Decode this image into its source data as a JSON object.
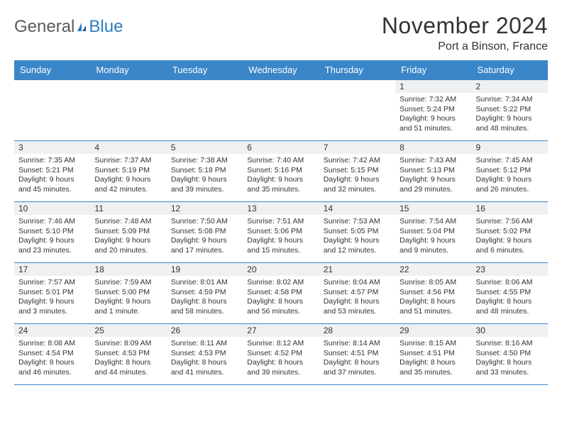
{
  "logo": {
    "general": "General",
    "blue": "Blue"
  },
  "title": "November 2024",
  "location": "Port a Binson, France",
  "colors": {
    "header_bg": "#3a86c8",
    "header_text": "#ffffff",
    "daynum_bg": "#eef0f2",
    "border": "#3a86c8",
    "logo_general": "#5a5a5a",
    "logo_blue": "#2e7cc0"
  },
  "weekdays": [
    "Sunday",
    "Monday",
    "Tuesday",
    "Wednesday",
    "Thursday",
    "Friday",
    "Saturday"
  ],
  "weeks": [
    [
      {
        "empty": true
      },
      {
        "empty": true
      },
      {
        "empty": true
      },
      {
        "empty": true
      },
      {
        "empty": true
      },
      {
        "num": "1",
        "sunrise": "Sunrise: 7:32 AM",
        "sunset": "Sunset: 5:24 PM",
        "daylight": "Daylight: 9 hours and 51 minutes."
      },
      {
        "num": "2",
        "sunrise": "Sunrise: 7:34 AM",
        "sunset": "Sunset: 5:22 PM",
        "daylight": "Daylight: 9 hours and 48 minutes."
      }
    ],
    [
      {
        "num": "3",
        "sunrise": "Sunrise: 7:35 AM",
        "sunset": "Sunset: 5:21 PM",
        "daylight": "Daylight: 9 hours and 45 minutes."
      },
      {
        "num": "4",
        "sunrise": "Sunrise: 7:37 AM",
        "sunset": "Sunset: 5:19 PM",
        "daylight": "Daylight: 9 hours and 42 minutes."
      },
      {
        "num": "5",
        "sunrise": "Sunrise: 7:38 AM",
        "sunset": "Sunset: 5:18 PM",
        "daylight": "Daylight: 9 hours and 39 minutes."
      },
      {
        "num": "6",
        "sunrise": "Sunrise: 7:40 AM",
        "sunset": "Sunset: 5:16 PM",
        "daylight": "Daylight: 9 hours and 35 minutes."
      },
      {
        "num": "7",
        "sunrise": "Sunrise: 7:42 AM",
        "sunset": "Sunset: 5:15 PM",
        "daylight": "Daylight: 9 hours and 32 minutes."
      },
      {
        "num": "8",
        "sunrise": "Sunrise: 7:43 AM",
        "sunset": "Sunset: 5:13 PM",
        "daylight": "Daylight: 9 hours and 29 minutes."
      },
      {
        "num": "9",
        "sunrise": "Sunrise: 7:45 AM",
        "sunset": "Sunset: 5:12 PM",
        "daylight": "Daylight: 9 hours and 26 minutes."
      }
    ],
    [
      {
        "num": "10",
        "sunrise": "Sunrise: 7:46 AM",
        "sunset": "Sunset: 5:10 PM",
        "daylight": "Daylight: 9 hours and 23 minutes."
      },
      {
        "num": "11",
        "sunrise": "Sunrise: 7:48 AM",
        "sunset": "Sunset: 5:09 PM",
        "daylight": "Daylight: 9 hours and 20 minutes."
      },
      {
        "num": "12",
        "sunrise": "Sunrise: 7:50 AM",
        "sunset": "Sunset: 5:08 PM",
        "daylight": "Daylight: 9 hours and 17 minutes."
      },
      {
        "num": "13",
        "sunrise": "Sunrise: 7:51 AM",
        "sunset": "Sunset: 5:06 PM",
        "daylight": "Daylight: 9 hours and 15 minutes."
      },
      {
        "num": "14",
        "sunrise": "Sunrise: 7:53 AM",
        "sunset": "Sunset: 5:05 PM",
        "daylight": "Daylight: 9 hours and 12 minutes."
      },
      {
        "num": "15",
        "sunrise": "Sunrise: 7:54 AM",
        "sunset": "Sunset: 5:04 PM",
        "daylight": "Daylight: 9 hours and 9 minutes."
      },
      {
        "num": "16",
        "sunrise": "Sunrise: 7:56 AM",
        "sunset": "Sunset: 5:02 PM",
        "daylight": "Daylight: 9 hours and 6 minutes."
      }
    ],
    [
      {
        "num": "17",
        "sunrise": "Sunrise: 7:57 AM",
        "sunset": "Sunset: 5:01 PM",
        "daylight": "Daylight: 9 hours and 3 minutes."
      },
      {
        "num": "18",
        "sunrise": "Sunrise: 7:59 AM",
        "sunset": "Sunset: 5:00 PM",
        "daylight": "Daylight: 9 hours and 1 minute."
      },
      {
        "num": "19",
        "sunrise": "Sunrise: 8:01 AM",
        "sunset": "Sunset: 4:59 PM",
        "daylight": "Daylight: 8 hours and 58 minutes."
      },
      {
        "num": "20",
        "sunrise": "Sunrise: 8:02 AM",
        "sunset": "Sunset: 4:58 PM",
        "daylight": "Daylight: 8 hours and 56 minutes."
      },
      {
        "num": "21",
        "sunrise": "Sunrise: 8:04 AM",
        "sunset": "Sunset: 4:57 PM",
        "daylight": "Daylight: 8 hours and 53 minutes."
      },
      {
        "num": "22",
        "sunrise": "Sunrise: 8:05 AM",
        "sunset": "Sunset: 4:56 PM",
        "daylight": "Daylight: 8 hours and 51 minutes."
      },
      {
        "num": "23",
        "sunrise": "Sunrise: 8:06 AM",
        "sunset": "Sunset: 4:55 PM",
        "daylight": "Daylight: 8 hours and 48 minutes."
      }
    ],
    [
      {
        "num": "24",
        "sunrise": "Sunrise: 8:08 AM",
        "sunset": "Sunset: 4:54 PM",
        "daylight": "Daylight: 8 hours and 46 minutes."
      },
      {
        "num": "25",
        "sunrise": "Sunrise: 8:09 AM",
        "sunset": "Sunset: 4:53 PM",
        "daylight": "Daylight: 8 hours and 44 minutes."
      },
      {
        "num": "26",
        "sunrise": "Sunrise: 8:11 AM",
        "sunset": "Sunset: 4:53 PM",
        "daylight": "Daylight: 8 hours and 41 minutes."
      },
      {
        "num": "27",
        "sunrise": "Sunrise: 8:12 AM",
        "sunset": "Sunset: 4:52 PM",
        "daylight": "Daylight: 8 hours and 39 minutes."
      },
      {
        "num": "28",
        "sunrise": "Sunrise: 8:14 AM",
        "sunset": "Sunset: 4:51 PM",
        "daylight": "Daylight: 8 hours and 37 minutes."
      },
      {
        "num": "29",
        "sunrise": "Sunrise: 8:15 AM",
        "sunset": "Sunset: 4:51 PM",
        "daylight": "Daylight: 8 hours and 35 minutes."
      },
      {
        "num": "30",
        "sunrise": "Sunrise: 8:16 AM",
        "sunset": "Sunset: 4:50 PM",
        "daylight": "Daylight: 8 hours and 33 minutes."
      }
    ]
  ]
}
